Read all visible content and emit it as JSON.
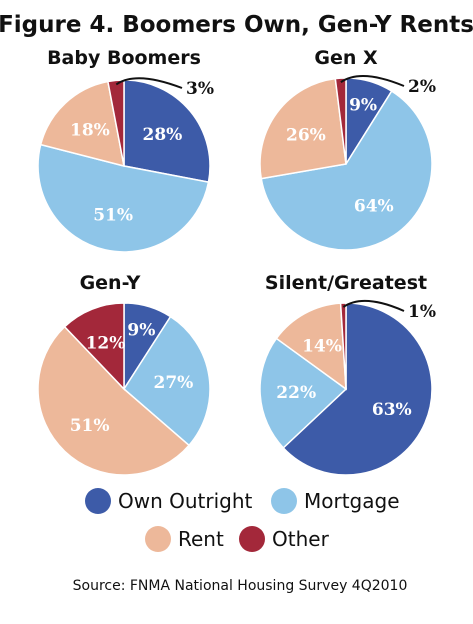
{
  "title": "Figure 4. Boomers Own, Gen-Y Rents",
  "source": "Source: FNMA National Housing Survey 4Q2010",
  "colors": {
    "Own Outright": "#3d5ba8",
    "Mortgage": "#8ec5e8",
    "Rent": "#edb89a",
    "Other": "#a3283a"
  },
  "chart_data": {
    "type": "pie",
    "legend": [
      "Own Outright",
      "Mortgage",
      "Rent",
      "Other"
    ],
    "legend_position": "bottom",
    "charts": [
      {
        "title": "Baby Boomers",
        "slices": [
          {
            "name": "Own Outright",
            "value": 28,
            "label": "28%"
          },
          {
            "name": "Mortgage",
            "value": 51,
            "label": "51%"
          },
          {
            "name": "Rent",
            "value": 18,
            "label": "18%"
          },
          {
            "name": "Other",
            "value": 3,
            "label": "3%"
          }
        ]
      },
      {
        "title": "Gen X",
        "slices": [
          {
            "name": "Own Outright",
            "value": 9,
            "label": "9%"
          },
          {
            "name": "Mortgage",
            "value": 64,
            "label": "64%"
          },
          {
            "name": "Rent",
            "value": 26,
            "label": "26%"
          },
          {
            "name": "Other",
            "value": 2,
            "label": "2%"
          }
        ]
      },
      {
        "title": "Gen-Y",
        "slices": [
          {
            "name": "Own Outright",
            "value": 9,
            "label": "9%"
          },
          {
            "name": "Mortgage",
            "value": 27,
            "label": "27%"
          },
          {
            "name": "Rent",
            "value": 51,
            "label": "51%"
          },
          {
            "name": "Other",
            "value": 12,
            "label": "12%"
          }
        ]
      },
      {
        "title": "Silent/Greatest",
        "slices": [
          {
            "name": "Own Outright",
            "value": 63,
            "label": "63%"
          },
          {
            "name": "Mortgage",
            "value": 22,
            "label": "22%"
          },
          {
            "name": "Rent",
            "value": 14,
            "label": "14%"
          },
          {
            "name": "Other",
            "value": 1,
            "label": "1%"
          }
        ]
      }
    ]
  }
}
